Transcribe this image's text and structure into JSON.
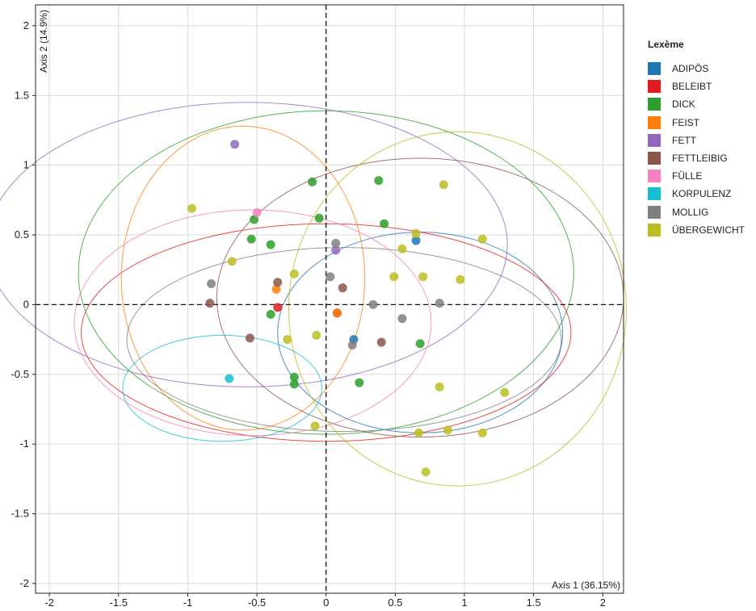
{
  "chart_data": {
    "type": "scatter",
    "xlabel": "Axis 1 (36.15%)",
    "ylabel": "Axis 2 (14.9%)",
    "xlim": [
      -2.1,
      2.15
    ],
    "ylim": [
      -2.07,
      2.15
    ],
    "x_ticks": [
      -2,
      -1.5,
      -1,
      -0.5,
      0,
      0.5,
      1,
      1.5,
      2
    ],
    "y_ticks": [
      2,
      1.5,
      1,
      0.5,
      0,
      -0.5,
      -1,
      -1.5,
      -2
    ],
    "grid": true,
    "legend_position": "right",
    "legend_title": "Lexème",
    "series": [
      {
        "name": "ADIPÖS",
        "color": "#1f77b4",
        "ellipse": {
          "cx": 0.68,
          "cy": -0.2,
          "rx": 1.03,
          "ry": 0.72
        },
        "points": [
          [
            0.65,
            0.46
          ],
          [
            0.2,
            -0.25
          ]
        ]
      },
      {
        "name": "BELEIBT",
        "color": "#e31a1c",
        "ellipse": {
          "cx": 0.0,
          "cy": -0.2,
          "rx": 1.77,
          "ry": 0.78
        },
        "points": [
          [
            -0.35,
            -0.02
          ],
          [
            0.08,
            -0.06
          ]
        ]
      },
      {
        "name": "DICK",
        "color": "#2ca02c",
        "ellipse": {
          "cx": 0.0,
          "cy": 0.23,
          "rx": 1.79,
          "ry": 1.16
        },
        "points": [
          [
            -0.52,
            0.61
          ],
          [
            -0.54,
            0.47
          ],
          [
            -0.05,
            0.62
          ],
          [
            0.38,
            0.89
          ],
          [
            -0.1,
            0.88
          ],
          [
            -0.4,
            0.43
          ],
          [
            0.42,
            0.58
          ],
          [
            0.68,
            -0.28
          ],
          [
            0.24,
            -0.56
          ],
          [
            -0.23,
            -0.52
          ],
          [
            -0.23,
            -0.57
          ],
          [
            -0.4,
            -0.07
          ]
        ]
      },
      {
        "name": "FEIST",
        "color": "#ff7f0e",
        "ellipse": {
          "cx": -0.6,
          "cy": 0.19,
          "rx": 0.88,
          "ry": 1.09
        },
        "points": [
          [
            -0.36,
            0.11
          ],
          [
            0.08,
            -0.06
          ]
        ]
      },
      {
        "name": "FETT",
        "color": "#9467bd",
        "ellipse": {
          "cx": -0.57,
          "cy": 0.43,
          "rx": 1.88,
          "ry": 1.02
        },
        "points": [
          [
            -0.66,
            1.15
          ],
          [
            0.07,
            0.39
          ]
        ]
      },
      {
        "name": "FETTLEIBIG",
        "color": "#8c564b",
        "ellipse": {
          "cx": 0.68,
          "cy": 0.05,
          "rx": 1.47,
          "ry": 1.0
        },
        "points": [
          [
            -0.84,
            0.01
          ],
          [
            -0.35,
            0.16
          ],
          [
            0.12,
            0.12
          ],
          [
            0.4,
            -0.27
          ],
          [
            -0.55,
            -0.24
          ]
        ]
      },
      {
        "name": "FÜLLE",
        "color": "#f781bf",
        "ellipse": {
          "cx": -0.53,
          "cy": -0.13,
          "rx": 1.29,
          "ry": 0.81
        },
        "points": [
          [
            -0.5,
            0.66
          ]
        ]
      },
      {
        "name": "KORPULENZ",
        "color": "#17becf",
        "ellipse": {
          "cx": -0.75,
          "cy": -0.6,
          "rx": 0.72,
          "ry": 0.38
        },
        "points": [
          [
            -0.7,
            -0.53
          ]
        ]
      },
      {
        "name": "MOLLIG",
        "color": "#7f7f7f",
        "ellipse": {
          "cx": 0.13,
          "cy": -0.25,
          "rx": 1.57,
          "ry": 0.66
        },
        "points": [
          [
            0.07,
            0.44
          ],
          [
            0.03,
            0.2
          ],
          [
            0.34,
            0.0
          ],
          [
            0.55,
            -0.1
          ],
          [
            0.82,
            0.01
          ],
          [
            -0.83,
            0.15
          ],
          [
            0.19,
            -0.29
          ]
        ]
      },
      {
        "name": "ÜBERGEWICHT",
        "color": "#bcbd22",
        "ellipse": {
          "cx": 0.95,
          "cy": -0.03,
          "rx": 1.22,
          "ry": 1.27
        },
        "points": [
          [
            -0.97,
            0.69
          ],
          [
            0.85,
            0.86
          ],
          [
            1.13,
            0.47
          ],
          [
            0.55,
            0.4
          ],
          [
            0.7,
            0.2
          ],
          [
            0.97,
            0.18
          ],
          [
            0.65,
            0.51
          ],
          [
            0.49,
            0.2
          ],
          [
            0.82,
            -0.59
          ],
          [
            1.29,
            -0.63
          ],
          [
            0.67,
            -0.92
          ],
          [
            0.88,
            -0.9
          ],
          [
            1.13,
            -0.92
          ],
          [
            0.72,
            -1.2
          ],
          [
            -0.08,
            -0.87
          ],
          [
            -0.28,
            -0.25
          ],
          [
            -0.07,
            -0.22
          ],
          [
            -0.68,
            0.31
          ],
          [
            -0.23,
            0.22
          ]
        ]
      }
    ]
  }
}
